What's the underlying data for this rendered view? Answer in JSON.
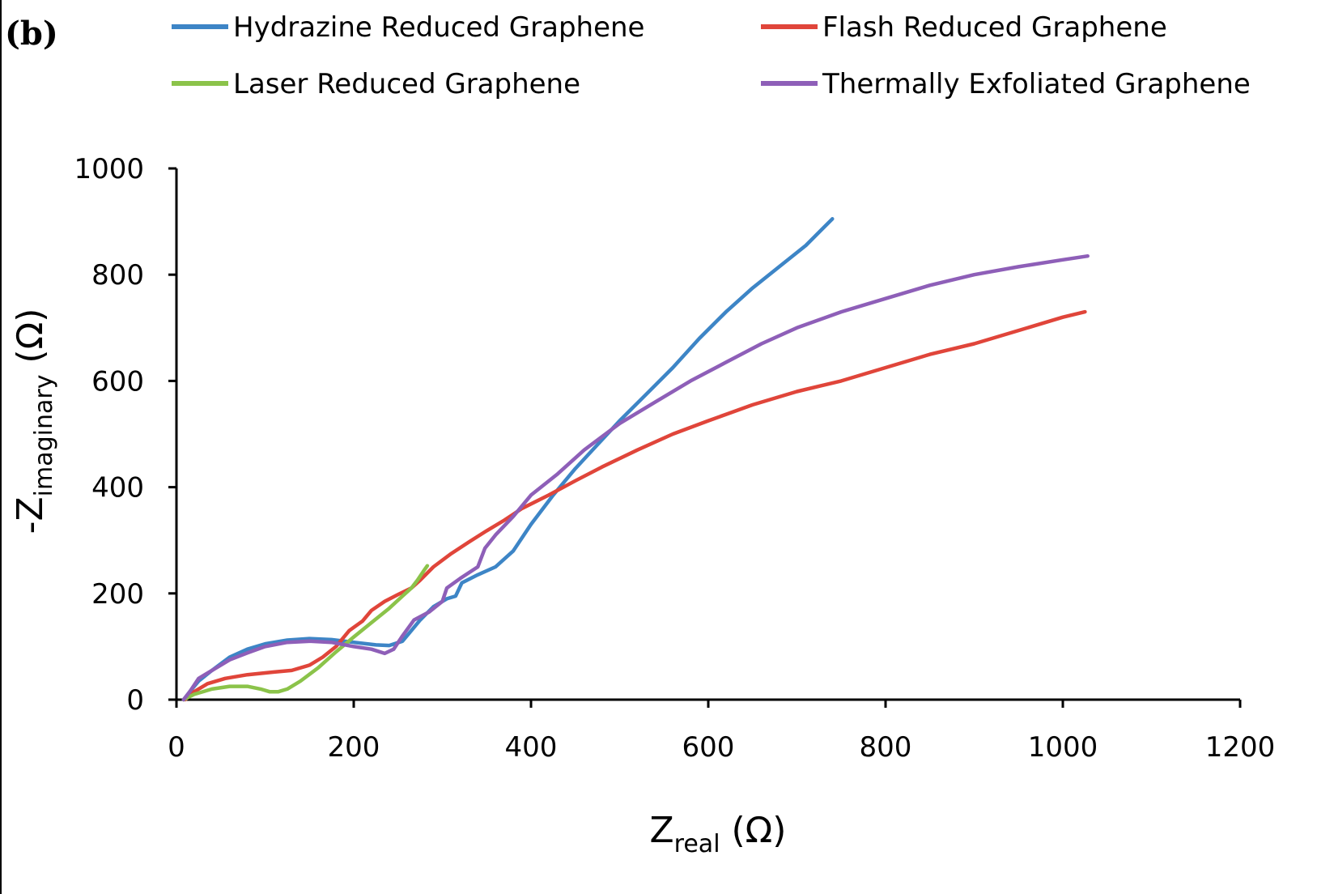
{
  "panel_label": "(b)",
  "chart_data": {
    "type": "line",
    "xlabel": {
      "main": "Z",
      "sub": "real",
      "unit": " (Ω)"
    },
    "ylabel": {
      "main": "-Z",
      "sub": "imaginary",
      "unit": " (Ω)"
    },
    "xlim": [
      0,
      1200
    ],
    "ylim": [
      0,
      1000
    ],
    "xticks": [
      0,
      200,
      400,
      600,
      800,
      1000,
      1200
    ],
    "yticks": [
      0,
      200,
      400,
      600,
      800,
      1000
    ],
    "xtick_labels": [
      "0",
      "200",
      "400",
      "600",
      "800",
      "1000",
      "1200"
    ],
    "ytick_labels": [
      "0",
      "200",
      "400",
      "600",
      "800",
      "1000"
    ],
    "grid": false,
    "legend": "top",
    "series": [
      {
        "name": "Hydrazine Reduced Graphene",
        "color": "#3d85c6",
        "points": [
          [
            8,
            0
          ],
          [
            15,
            15
          ],
          [
            25,
            35
          ],
          [
            40,
            55
          ],
          [
            60,
            80
          ],
          [
            80,
            95
          ],
          [
            100,
            105
          ],
          [
            125,
            112
          ],
          [
            150,
            115
          ],
          [
            175,
            113
          ],
          [
            200,
            108
          ],
          [
            225,
            103
          ],
          [
            240,
            102
          ],
          [
            255,
            110
          ],
          [
            265,
            130
          ],
          [
            275,
            150
          ],
          [
            290,
            175
          ],
          [
            305,
            190
          ],
          [
            315,
            195
          ],
          [
            322,
            220
          ],
          [
            340,
            235
          ],
          [
            360,
            250
          ],
          [
            380,
            280
          ],
          [
            400,
            330
          ],
          [
            425,
            385
          ],
          [
            450,
            435
          ],
          [
            475,
            480
          ],
          [
            500,
            525
          ],
          [
            530,
            575
          ],
          [
            560,
            625
          ],
          [
            590,
            680
          ],
          [
            620,
            730
          ],
          [
            650,
            775
          ],
          [
            680,
            815
          ],
          [
            710,
            855
          ],
          [
            740,
            905
          ]
        ]
      },
      {
        "name": "Flash Reduced Graphene",
        "color": "#e0453a",
        "points": [
          [
            10,
            0
          ],
          [
            20,
            15
          ],
          [
            35,
            30
          ],
          [
            55,
            40
          ],
          [
            80,
            47
          ],
          [
            110,
            52
          ],
          [
            130,
            55
          ],
          [
            150,
            65
          ],
          [
            165,
            80
          ],
          [
            180,
            100
          ],
          [
            195,
            130
          ],
          [
            210,
            148
          ],
          [
            220,
            168
          ],
          [
            235,
            185
          ],
          [
            250,
            198
          ],
          [
            265,
            210
          ],
          [
            275,
            225
          ],
          [
            290,
            250
          ],
          [
            310,
            275
          ],
          [
            330,
            297
          ],
          [
            350,
            318
          ],
          [
            370,
            338
          ],
          [
            390,
            360
          ],
          [
            420,
            385
          ],
          [
            450,
            412
          ],
          [
            480,
            438
          ],
          [
            520,
            470
          ],
          [
            560,
            500
          ],
          [
            600,
            525
          ],
          [
            650,
            555
          ],
          [
            700,
            580
          ],
          [
            750,
            600
          ],
          [
            800,
            625
          ],
          [
            850,
            650
          ],
          [
            900,
            670
          ],
          [
            950,
            695
          ],
          [
            1000,
            720
          ],
          [
            1025,
            730
          ]
        ]
      },
      {
        "name": "Laser Reduced Graphene",
        "color": "#8bc34a",
        "points": [
          [
            8,
            0
          ],
          [
            20,
            10
          ],
          [
            40,
            20
          ],
          [
            60,
            25
          ],
          [
            80,
            25
          ],
          [
            95,
            20
          ],
          [
            105,
            15
          ],
          [
            115,
            15
          ],
          [
            125,
            20
          ],
          [
            140,
            35
          ],
          [
            160,
            60
          ],
          [
            180,
            90
          ],
          [
            200,
            118
          ],
          [
            220,
            145
          ],
          [
            240,
            172
          ],
          [
            255,
            195
          ],
          [
            265,
            210
          ],
          [
            272,
            225
          ],
          [
            280,
            245
          ],
          [
            283,
            252
          ]
        ]
      },
      {
        "name": "Thermally Exfoliated Graphene",
        "color": "#8e5fb8",
        "points": [
          [
            8,
            0
          ],
          [
            15,
            15
          ],
          [
            25,
            40
          ],
          [
            40,
            55
          ],
          [
            60,
            75
          ],
          [
            80,
            88
          ],
          [
            100,
            100
          ],
          [
            125,
            108
          ],
          [
            150,
            110
          ],
          [
            175,
            108
          ],
          [
            200,
            100
          ],
          [
            220,
            95
          ],
          [
            235,
            87
          ],
          [
            245,
            95
          ],
          [
            255,
            120
          ],
          [
            268,
            150
          ],
          [
            285,
            165
          ],
          [
            300,
            185
          ],
          [
            305,
            210
          ],
          [
            320,
            228
          ],
          [
            340,
            250
          ],
          [
            348,
            285
          ],
          [
            360,
            310
          ],
          [
            380,
            345
          ],
          [
            400,
            385
          ],
          [
            430,
            425
          ],
          [
            460,
            470
          ],
          [
            500,
            520
          ],
          [
            540,
            560
          ],
          [
            580,
            600
          ],
          [
            620,
            635
          ],
          [
            660,
            670
          ],
          [
            700,
            700
          ],
          [
            750,
            730
          ],
          [
            800,
            755
          ],
          [
            850,
            780
          ],
          [
            900,
            800
          ],
          [
            950,
            815
          ],
          [
            1000,
            828
          ],
          [
            1028,
            835
          ]
        ]
      }
    ]
  }
}
